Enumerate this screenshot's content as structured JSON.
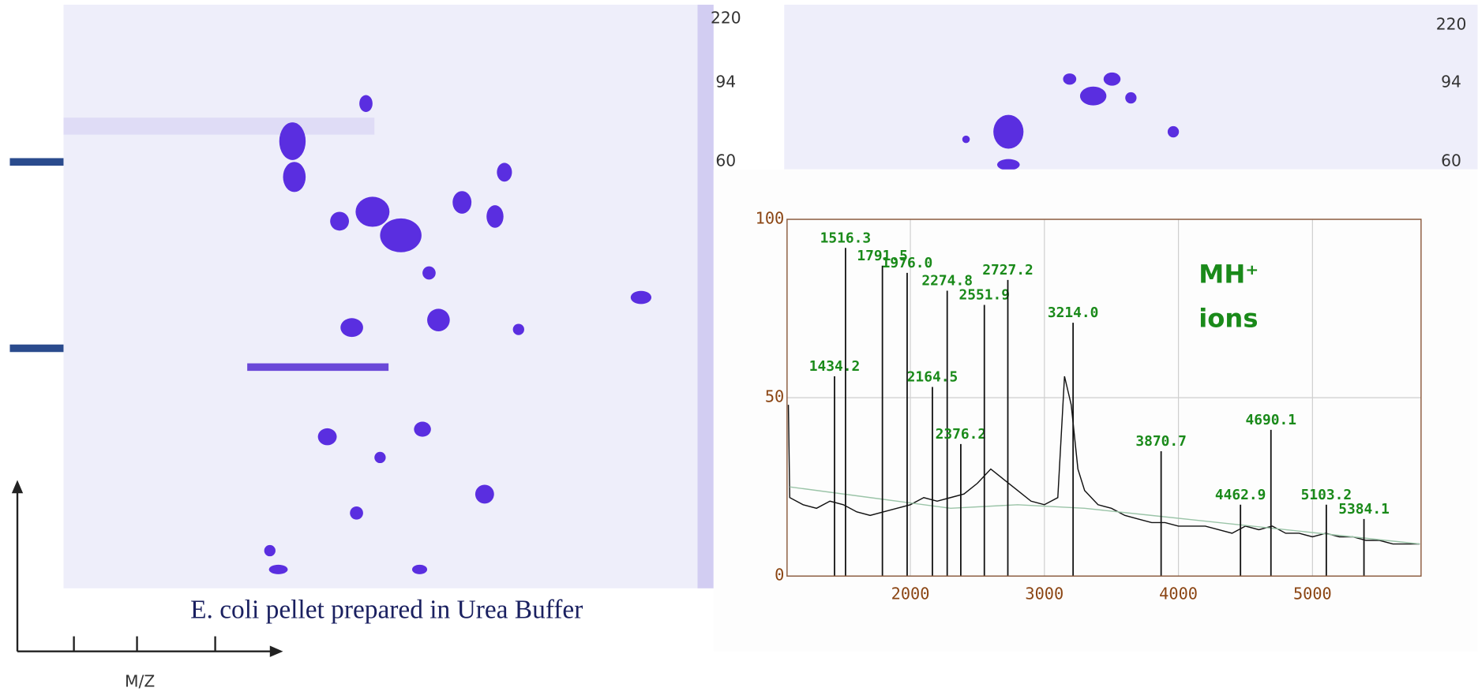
{
  "left_gel": {
    "markers": [
      "220",
      "94",
      "60"
    ],
    "caption": "E. coli pellet prepared in Urea Buffer"
  },
  "right_gel": {
    "markers": [
      "220",
      "94",
      "60"
    ]
  },
  "background_slide": {
    "axis_label": "M/Z"
  },
  "chart_data": {
    "type": "line",
    "xlim": [
      1080,
      5810
    ],
    "ylim": [
      0,
      100
    ],
    "xticks": [
      2000,
      3000,
      4000,
      5000
    ],
    "yticks": [
      0,
      50,
      100
    ],
    "grid": true,
    "annotations": [
      "MH⁺",
      "ions"
    ],
    "series": [
      {
        "color": "#111111",
        "x": [
          1090,
          1100,
          1200,
          1300,
          1400,
          1500,
          1600,
          1700,
          1800,
          1900,
          2000,
          2100,
          2200,
          2300,
          2400,
          2500,
          2600,
          2700,
          2800,
          2900,
          3000,
          3100,
          3150,
          3200,
          3250,
          3300,
          3400,
          3500,
          3600,
          3700,
          3800,
          3900,
          4000,
          4100,
          4200,
          4300,
          4400,
          4500,
          4600,
          4700,
          4800,
          4900,
          5000,
          5100,
          5200,
          5300,
          5400,
          5500,
          5600,
          5700,
          5800
        ],
        "values": [
          48,
          22,
          20,
          19,
          21,
          20,
          18,
          17,
          18,
          19,
          20,
          22,
          21,
          22,
          23,
          26,
          30,
          27,
          24,
          21,
          20,
          22,
          56,
          48,
          30,
          24,
          20,
          19,
          17,
          16,
          15,
          15,
          14,
          14,
          14,
          13,
          12,
          14,
          13,
          14,
          12,
          12,
          11,
          12,
          11,
          11,
          10,
          10,
          9,
          9,
          9
        ]
      },
      {
        "color": "#9bc4a8",
        "x": [
          1100,
          1700,
          2300,
          2800,
          3300,
          3800,
          4300,
          4800,
          5300,
          5800
        ],
        "values": [
          25,
          22,
          19,
          20,
          19,
          17,
          15,
          13,
          11,
          9
        ]
      }
    ],
    "peaks": {
      "color": "#111111",
      "label_color": "#1a8a1a",
      "x": [
        1434.2,
        1516.3,
        1791.5,
        1976.0,
        2164.5,
        2274.8,
        2376.2,
        2551.9,
        2727.2,
        3214.0,
        3870.7,
        4462.9,
        4690.1,
        5103.2,
        5384.1
      ],
      "x_labels": [
        "1434.2",
        "1516.3",
        "1791.5",
        "1976.0",
        "2164.5",
        "2274.8",
        "2376.2",
        "2551.9",
        "2727.2",
        "3214.0",
        "3870.7",
        "4462.9",
        "4690.1",
        "5103.2",
        "5384.1"
      ],
      "values": [
        56,
        92,
        87,
        85,
        53,
        80,
        37,
        76,
        83,
        71,
        35,
        20,
        41,
        20,
        16
      ]
    }
  }
}
